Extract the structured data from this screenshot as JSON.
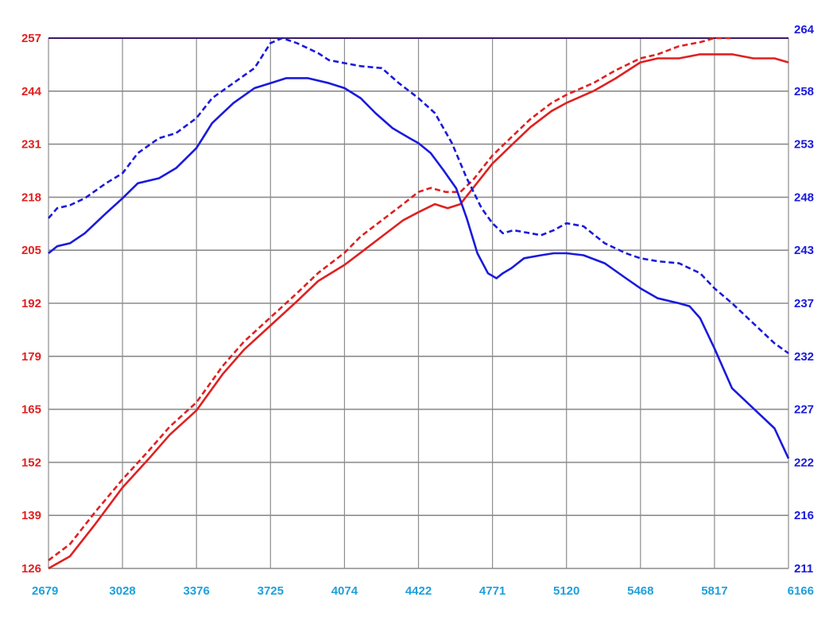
{
  "chart_data": {
    "type": "line",
    "title": "",
    "xlabel": "",
    "ylabel_left": "",
    "ylabel_right": "",
    "x_ticks": [
      "2679",
      "3028",
      "3376",
      "3725",
      "4074",
      "4422",
      "4771",
      "5120",
      "5468",
      "5817",
      "6166"
    ],
    "left_y_ticks": [
      "126",
      "139",
      "152",
      "165",
      "179",
      "192",
      "205",
      "218",
      "231",
      "244",
      "257"
    ],
    "right_y_ticks": [
      "211",
      "216",
      "222",
      "227",
      "232",
      "237",
      "243",
      "248",
      "253",
      "258",
      "264"
    ],
    "xlim": [
      2679,
      6166
    ],
    "ylim_left": [
      126,
      257
    ],
    "ylim_right": [
      211,
      264
    ],
    "grid": true,
    "series": [
      {
        "axis": "left",
        "style": "solid",
        "color": "#e02020",
        "x": [
          2679,
          2780,
          2900,
          3028,
          3150,
          3250,
          3376,
          3500,
          3600,
          3725,
          3850,
          3950,
          4074,
          4150,
          4250,
          4350,
          4422,
          4500,
          4560,
          4620,
          4680,
          4771,
          4850,
          4950,
          5050,
          5120,
          5250,
          5350,
          5468,
          5550,
          5650,
          5750,
          5817,
          5900,
          6000,
          6100,
          6166
        ],
        "y": [
          126,
          129,
          137,
          146,
          153,
          159,
          165,
          174,
          180,
          186,
          192,
          197,
          201,
          204,
          208,
          212,
          214,
          216,
          215,
          216,
          220,
          226,
          230,
          235,
          239,
          241,
          244,
          247,
          251,
          252,
          252,
          253,
          253,
          253,
          252,
          252,
          251
        ]
      },
      {
        "axis": "left",
        "style": "dashed",
        "color": "#e02020",
        "x": [
          2679,
          2780,
          2900,
          3028,
          3150,
          3250,
          3376,
          3500,
          3600,
          3725,
          3850,
          3950,
          4074,
          4150,
          4250,
          4350,
          4422,
          4480,
          4550,
          4620,
          4680,
          4771,
          4850,
          4950,
          5050,
          5120,
          5250,
          5350,
          5468,
          5550,
          5650,
          5750,
          5817,
          5860,
          5900
        ],
        "y": [
          128,
          132,
          140,
          148,
          155,
          161,
          167,
          176,
          182,
          188,
          194,
          199,
          204,
          208,
          212,
          216,
          219,
          220,
          219,
          219,
          222,
          228,
          232,
          237,
          241,
          243,
          246,
          249,
          252,
          253,
          255,
          256,
          257,
          258,
          257
        ]
      },
      {
        "axis": "right",
        "style": "solid",
        "color": "#1a1adc",
        "x": [
          2679,
          2720,
          2780,
          2850,
          2950,
          3028,
          3100,
          3200,
          3280,
          3376,
          3450,
          3550,
          3650,
          3725,
          3800,
          3900,
          4000,
          4074,
          4150,
          4220,
          4300,
          4380,
          4422,
          4480,
          4540,
          4600,
          4650,
          4700,
          4750,
          4790,
          4820,
          4860,
          4920,
          5000,
          5060,
          5120,
          5200,
          5300,
          5400,
          5468,
          5550,
          5650,
          5700,
          5750,
          5817,
          5900,
          6000,
          6100,
          6166
        ],
        "y": [
          242.5,
          243.2,
          243.5,
          244.5,
          246.5,
          248.0,
          249.5,
          250.0,
          251.0,
          253.0,
          255.5,
          257.5,
          259.0,
          259.5,
          260.0,
          260.0,
          259.5,
          259.0,
          258.0,
          256.5,
          255.0,
          254.0,
          253.5,
          252.5,
          250.8,
          249.0,
          246.0,
          242.5,
          240.5,
          240.0,
          240.5,
          241.0,
          242.0,
          242.3,
          242.5,
          242.5,
          242.3,
          241.5,
          240.0,
          239.0,
          238.0,
          237.5,
          237.2,
          236.0,
          233.0,
          229.0,
          227.0,
          225.0,
          222.0
        ]
      },
      {
        "axis": "right",
        "style": "dashed",
        "color": "#1a1adc",
        "x": [
          2679,
          2720,
          2780,
          2850,
          2950,
          3028,
          3100,
          3200,
          3280,
          3376,
          3450,
          3550,
          3650,
          3725,
          3780,
          3850,
          3950,
          4000,
          4074,
          4150,
          4250,
          4330,
          4422,
          4500,
          4580,
          4650,
          4720,
          4771,
          4820,
          4870,
          4950,
          5000,
          5060,
          5120,
          5200,
          5300,
          5400,
          5468,
          5550,
          5650,
          5700,
          5750,
          5817,
          5900,
          6000,
          6100,
          6166
        ],
        "y": [
          246.0,
          247.0,
          247.3,
          248.0,
          249.5,
          250.5,
          252.5,
          254.0,
          254.5,
          256.0,
          258.0,
          259.5,
          261.0,
          263.5,
          264.0,
          263.5,
          262.5,
          261.8,
          261.5,
          261.2,
          261.0,
          259.5,
          258.0,
          256.5,
          253.5,
          250.0,
          247.0,
          245.5,
          244.5,
          244.8,
          244.5,
          244.3,
          244.8,
          245.5,
          245.2,
          243.5,
          242.5,
          242.0,
          241.7,
          241.5,
          241.0,
          240.5,
          239.0,
          237.5,
          235.5,
          233.5,
          232.5
        ]
      }
    ],
    "colors": {
      "left_tick_color": "#e02020",
      "right_tick_color": "#1a1adc",
      "x_tick_color": "#1ea0dc",
      "grid_color": "#8c8c8c",
      "top_line_color": "#3a1a6a"
    }
  }
}
